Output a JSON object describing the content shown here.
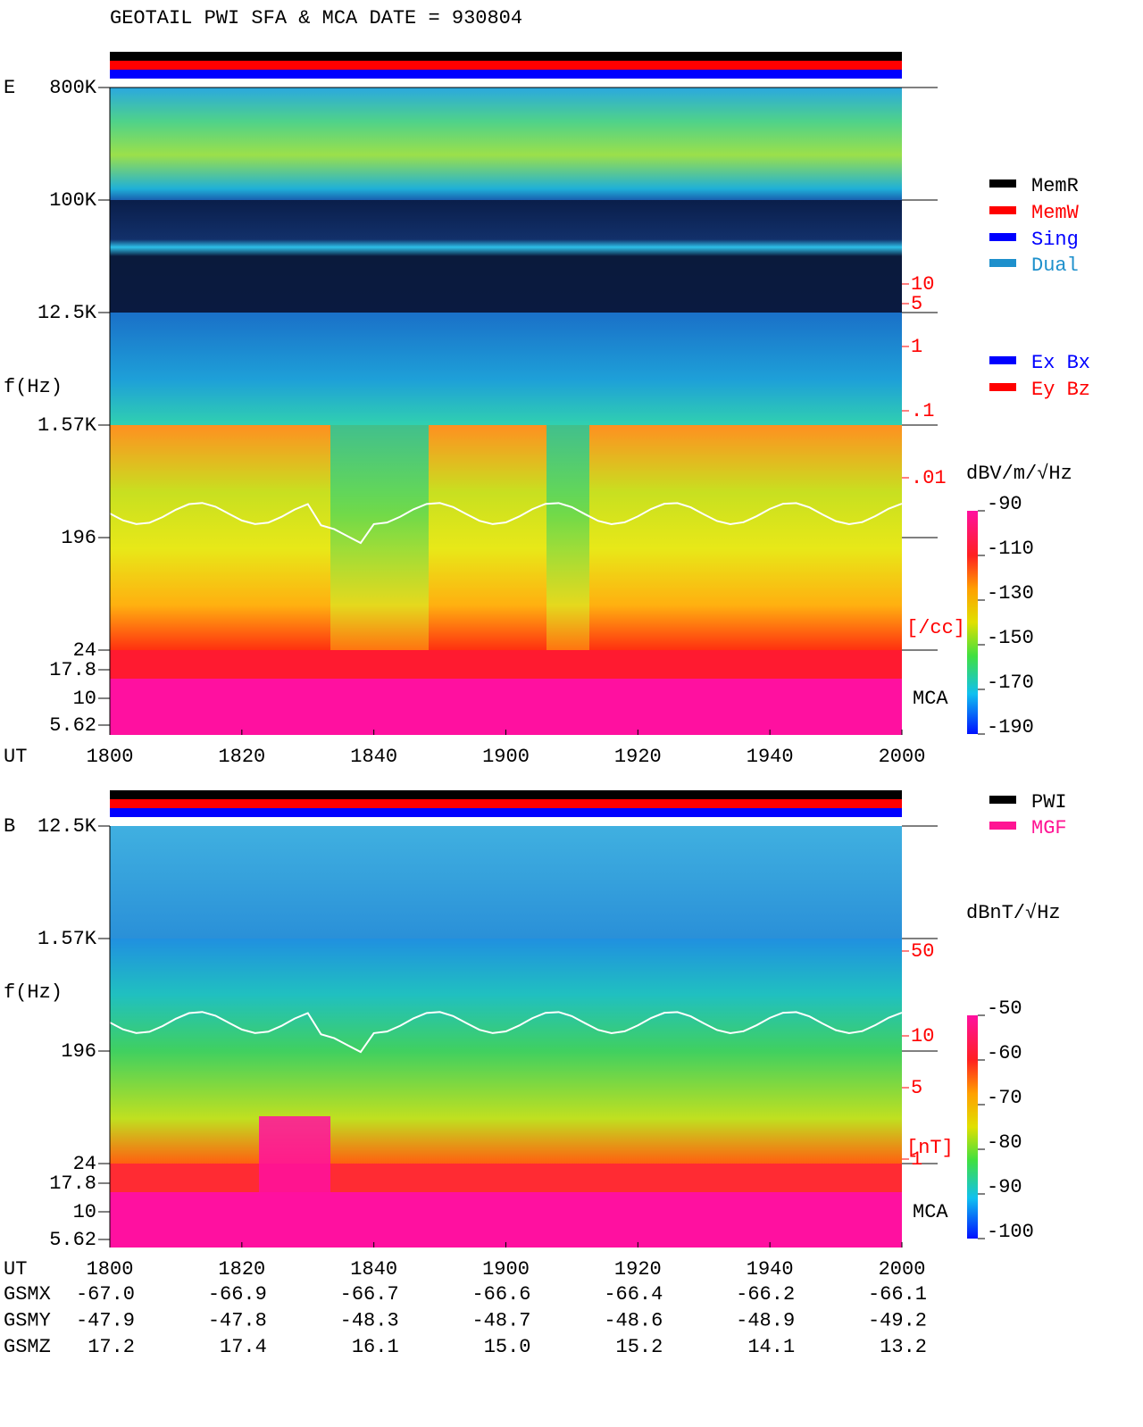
{
  "header": {
    "title": "GEOTAIL  PWI SFA & MCA   DATE = 930804"
  },
  "panels": [
    {
      "label": "E",
      "y_axis_label": "f(Hz)",
      "freq_ticks": [
        "800K",
        "100K",
        "12.5K",
        "1.57K",
        "196",
        "24",
        "17.8",
        "10",
        "5.62"
      ],
      "density_ticks": [
        "10",
        "5",
        "1",
        ".1",
        ".01"
      ],
      "density_unit": "[/cc]",
      "mca_label": "MCA",
      "legend": [
        {
          "name": "MemR",
          "color": "#000000"
        },
        {
          "name": "MemW",
          "color": "#ff0000"
        },
        {
          "name": "Sing",
          "color": "#0000ff"
        },
        {
          "name": "Dual",
          "color": "#1e90cc"
        }
      ],
      "legend2": [
        {
          "name": "Ex Bx",
          "color": "#0000ff"
        },
        {
          "name": "Ey Bz",
          "color": "#ff0000"
        }
      ],
      "colorbar": {
        "unit": "dBV/m/√Hz",
        "ticks": [
          "-90",
          "-110",
          "-130",
          "-150",
          "-170",
          "-190"
        ]
      }
    },
    {
      "label": "B",
      "y_axis_label": "f(Hz)",
      "freq_ticks": [
        "12.5K",
        "1.57K",
        "196",
        "24",
        "17.8",
        "10",
        "5.62"
      ],
      "density_ticks": [
        "50",
        "10",
        "5",
        "1"
      ],
      "density_unit": "[nT]",
      "mca_label": "MCA",
      "legend": [
        {
          "name": "PWI",
          "color": "#000000"
        },
        {
          "name": "MGF",
          "color": "#ff1493"
        }
      ],
      "colorbar": {
        "unit": "dBnT/√Hz",
        "ticks": [
          "-50",
          "-60",
          "-70",
          "-80",
          "-90",
          "-100"
        ]
      }
    }
  ],
  "time_axis": {
    "label": "UT",
    "ticks": [
      "1800",
      "1820",
      "1840",
      "1900",
      "1920",
      "1940",
      "2000"
    ]
  },
  "orbit": [
    {
      "label": "GSMX",
      "values": [
        "-67.0",
        "-66.9",
        "-66.7",
        "-66.6",
        "-66.4",
        "-66.2",
        "-66.1"
      ]
    },
    {
      "label": "GSMY",
      "values": [
        "-47.9",
        "-47.8",
        "-48.3",
        "-48.7",
        "-48.6",
        "-48.9",
        "-49.2"
      ]
    },
    {
      "label": "GSMZ",
      "values": [
        "17.2",
        "17.4",
        "16.1",
        "15.0",
        "15.2",
        "14.1",
        "13.2"
      ]
    }
  ]
}
